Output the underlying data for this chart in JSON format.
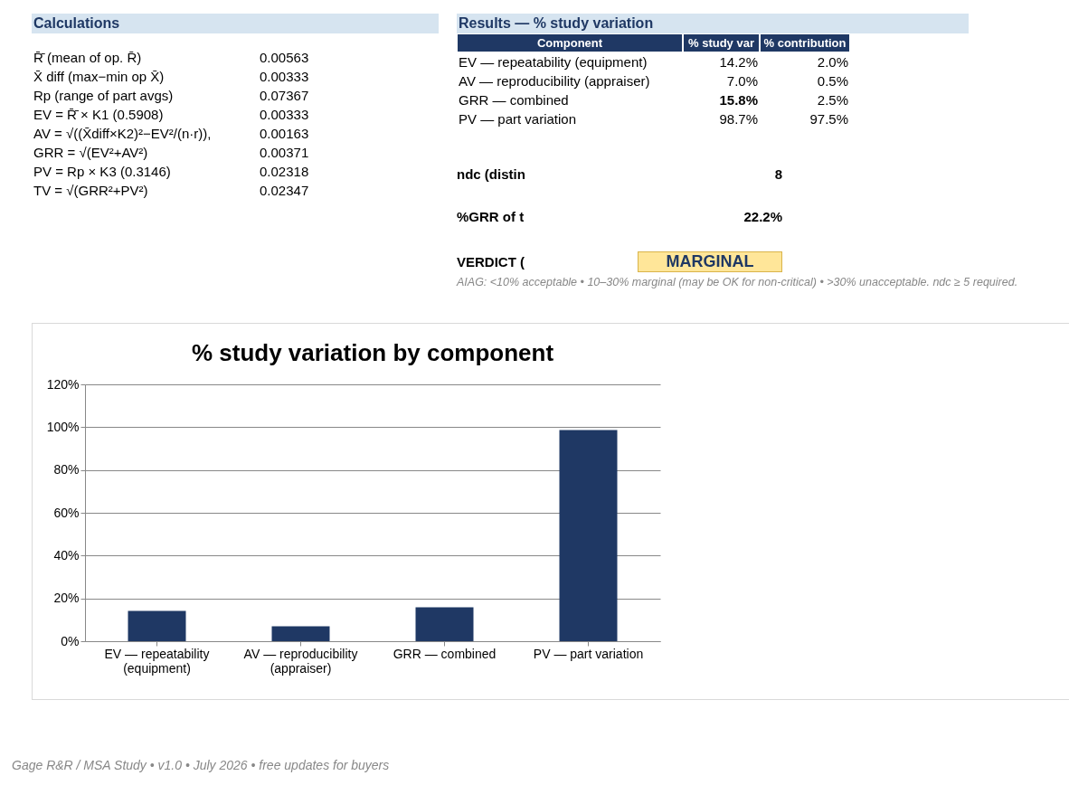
{
  "chart_data": [
    {
      "type": "other",
      "title": "Calculations",
      "annotations": [
        "R̄̄ (mean of op. R̄)",
        "0.00563",
        "X̄ diff (max−min op X̄)",
        "0.00333",
        "Rp (range of part avgs)",
        "0.07367",
        "EV = R̄̄ × K1 (0.5908)",
        "0.00333",
        "AV = √((X̄diff×K2)²−EV²/(n·r)),",
        "0.00163",
        "GRR = √(EV²+AV²)",
        "0.00371",
        "PV = Rp × K3 (0.3146)",
        "0.02318",
        "TV = √(GRR²+PV²)",
        "0.02347"
      ]
    },
    {
      "type": "other",
      "title": "Results — % study variation",
      "annotations": [
        "Component",
        "% study var",
        "% contribution",
        "EV — repeatability (equipment)",
        "14.2%",
        "2.0%",
        "AV — reproducibility (appraiser)",
        "7.0%",
        "0.5%",
        "GRR — combined",
        "15.8%",
        "2.5%",
        "PV — part variation",
        "98.7%",
        "97.5%"
      ]
    },
    {
      "type": "other",
      "annotations": [
        "ndc (distin",
        "8",
        "%GRR of t",
        "22.2%",
        "VERDICT (",
        "MARGINAL",
        "AIAG: <10% acceptable • 10–30% marginal (may be OK for non-critical) • >30% unacceptable. ndc ≥ 5 required."
      ]
    },
    {
      "type": "bar",
      "title": "% study variation by component",
      "categories": [
        "EV — repeatability (equipment)",
        "AV — reproducibility (appraiser)",
        "GRR — combined",
        "PV — part variation"
      ],
      "values": [
        14.2,
        7.0,
        15.8,
        98.7
      ],
      "color": "#1f3864",
      "ylim": [
        0,
        120
      ],
      "yticks": [
        {
          "value": 0,
          "label": "0%"
        },
        {
          "value": 20,
          "label": "20%"
        },
        {
          "value": 40,
          "label": "40%"
        },
        {
          "value": 60,
          "label": "60%"
        },
        {
          "value": 80,
          "label": "80%"
        },
        {
          "value": 100,
          "label": "100%"
        },
        {
          "value": 120,
          "label": "120%"
        }
      ],
      "grid": "y",
      "annotations": [
        "Gage R&R / MSA Study • v1.0 • July 2026 • free updates for buyers"
      ]
    }
  ]
}
